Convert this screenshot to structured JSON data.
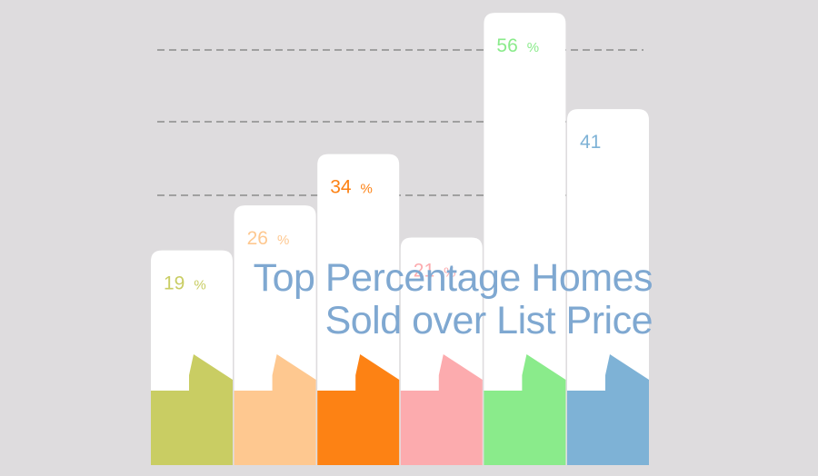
{
  "title": {
    "line1": "Top Percentage Homes",
    "line2": "Sold over List Price"
  },
  "chart_data": {
    "type": "bar",
    "title": "Top Percentage Homes Sold over List Price",
    "xlabel": "",
    "ylabel": "",
    "grid": true,
    "categories": [
      "",
      "",
      "",
      "",
      "",
      ""
    ],
    "values": [
      19,
      26,
      34,
      21,
      56,
      41
    ],
    "value_labels": [
      "19 %",
      "26 %",
      "34 %",
      "21 %",
      "56 %",
      "41"
    ],
    "colors": [
      "#c9cd63",
      "#fec890",
      "#fd8214",
      "#fcabae",
      "#8aeb8b",
      "#7eb2d6"
    ],
    "card_color": "#ffffff",
    "gridline_color": "#7c7c7c"
  }
}
